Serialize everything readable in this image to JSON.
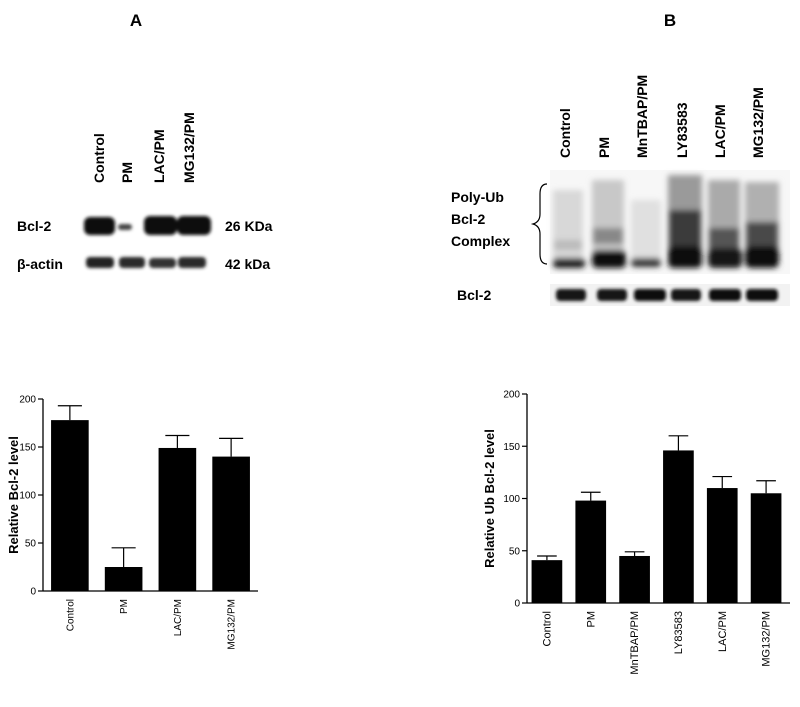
{
  "panels": {
    "a_label": "A",
    "b_label": "B"
  },
  "blot_a": {
    "lanes": [
      "Control",
      "PM",
      "LAC/PM",
      "MG132/PM"
    ],
    "rows": [
      {
        "name": "Bcl-2",
        "size": "26 KDa"
      },
      {
        "name": "β-actin",
        "size": "42 kDa"
      }
    ]
  },
  "blot_b": {
    "lanes": [
      "Control",
      "PM",
      "MnTBAP/PM",
      "LY83583",
      "LAC/PM",
      "MG132/PM"
    ],
    "complex_label": [
      "Poly-Ub",
      "Bcl-2",
      "Complex"
    ],
    "row_label": "Bcl-2"
  },
  "chart_data": [
    {
      "type": "bar",
      "categories": [
        "Control",
        "PM",
        "LAC/PM",
        "MG132/PM"
      ],
      "values": [
        178,
        25,
        149,
        140
      ],
      "errors": [
        15,
        20,
        13,
        19
      ],
      "ylabel": "Relative Bcl-2 level",
      "xlabel": "",
      "ylim": [
        0,
        200
      ],
      "yticks": [
        0,
        50,
        100,
        150,
        200
      ],
      "grid": false,
      "colors": {
        "bar": "#000000"
      }
    },
    {
      "type": "bar",
      "categories": [
        "Control",
        "PM",
        "MnTBAP/PM",
        "LY83583",
        "LAC/PM",
        "MG132/PM"
      ],
      "values": [
        41,
        98,
        45,
        146,
        110,
        105
      ],
      "errors": [
        4,
        8,
        4,
        14,
        11,
        12
      ],
      "ylabel": "Relative Ub Bcl-2 level",
      "xlabel": "",
      "ylim": [
        0,
        200
      ],
      "yticks": [
        0,
        50,
        100,
        150,
        200
      ],
      "grid": false,
      "colors": {
        "bar": "#000000"
      }
    }
  ]
}
